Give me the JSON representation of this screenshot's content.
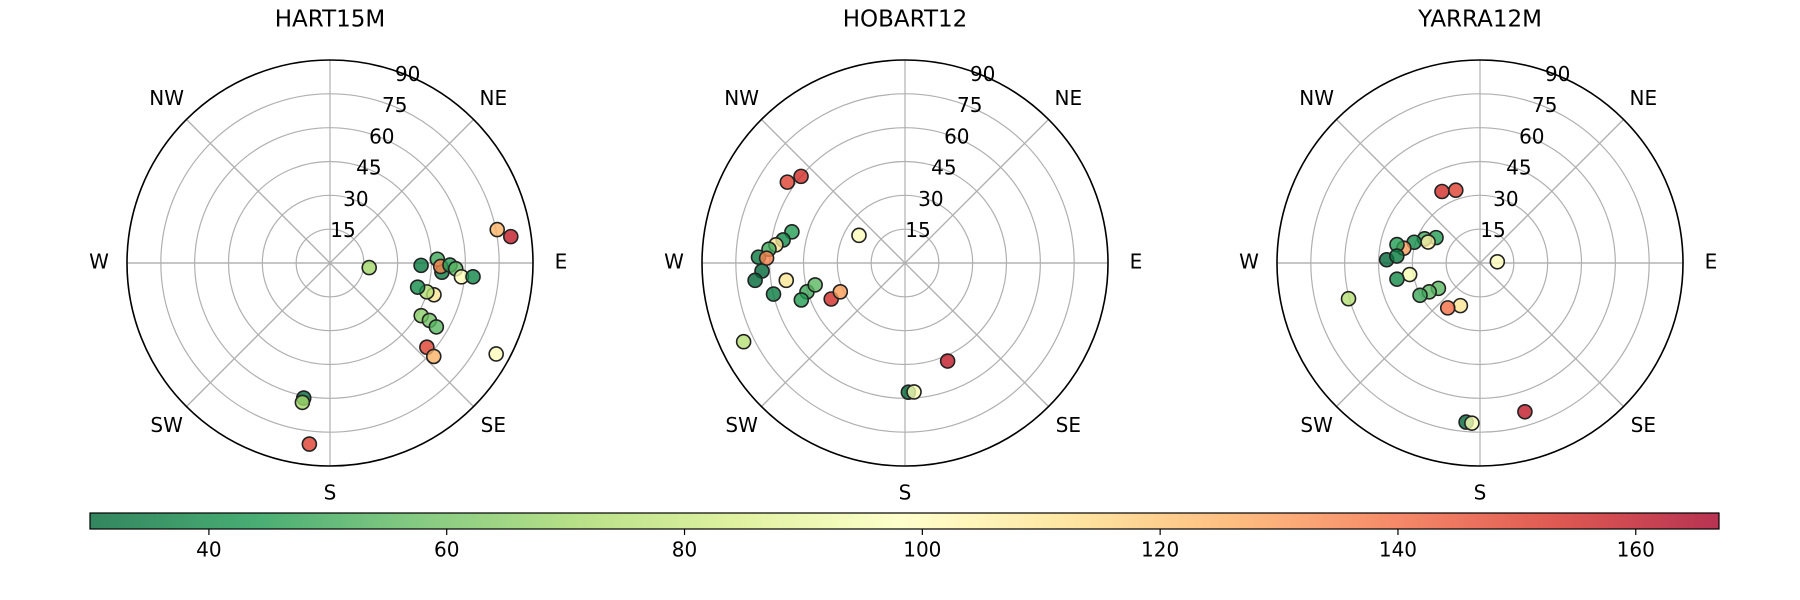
{
  "chart_data": [
    {
      "type": "polar-scatter",
      "title": "HART15M",
      "theta": [
        96.7,
        78.7,
        81.7,
        91.5,
        88,
        94.7,
        91.8,
        91,
        92.6,
        96,
        95.5,
        107,
        106.6,
        105.4,
        120,
        120,
        121,
        131,
        132,
        118.7,
        191,
        191.2,
        186.5
      ],
      "r": [
        17.5,
        75.6,
        81,
        40.4,
        47.6,
        49.8,
        49.1,
        53.2,
        55.8,
        58.6,
        63.7,
        48.2,
        44.8,
        40.3,
        46.7,
        50.9,
        55,
        56.9,
        61.9,
        84,
        61,
        63,
        80.8
      ],
      "c": [
        70,
        125,
        160,
        35,
        50,
        35,
        135,
        45,
        55,
        100,
        38,
        110,
        75,
        40,
        65,
        60,
        55,
        150,
        125,
        100,
        30,
        70,
        150
      ],
      "rlim": [
        0,
        90
      ],
      "rticks": [
        15,
        30,
        45,
        60,
        75,
        90
      ],
      "thetaticks": [
        {
          "value": 45,
          "label": "NE"
        },
        {
          "value": 90,
          "label": "E"
        },
        {
          "value": 135,
          "label": "SE"
        },
        {
          "value": 180,
          "label": "S"
        },
        {
          "value": 225,
          "label": "SW"
        },
        {
          "value": 270,
          "label": "W"
        },
        {
          "value": 315,
          "label": "NW"
        }
      ],
      "grid": true
    },
    {
      "type": "polar-scatter",
      "title": "HOBART12",
      "theta": [
        301,
        304.5,
        309.8,
        285.4,
        280.7,
        278,
        275.8,
        272.3,
        272,
        266.8,
        263.4,
        256.7,
        261.7,
        253.6,
        256.3,
        250.4,
        244,
        246,
        244,
        156.5,
        178.5,
        176
      ],
      "r": [
        23.8,
        63.3,
        60,
        52,
        55,
        57.8,
        60.6,
        65,
        61.4,
        63.5,
        66.9,
        59.9,
        53.2,
        45.3,
        41,
        48.8,
        36.4,
        31.4,
        79.6,
        47.4,
        57.3,
        57.3
      ],
      "c": [
        100,
        150,
        155,
        45,
        40,
        110,
        50,
        35,
        135,
        30,
        30,
        35,
        110,
        50,
        55,
        45,
        155,
        130,
        75,
        160,
        30,
        95
      ],
      "rlim": [
        0,
        90
      ],
      "rticks": [
        15,
        30,
        45,
        60,
        75,
        90
      ],
      "thetaticks": [
        {
          "value": 45,
          "label": "NE"
        },
        {
          "value": 90,
          "label": "E"
        },
        {
          "value": 135,
          "label": "SE"
        },
        {
          "value": 180,
          "label": "S"
        },
        {
          "value": 225,
          "label": "SW"
        },
        {
          "value": 270,
          "label": "W"
        },
        {
          "value": 315,
          "label": "NW"
        }
      ],
      "grid": true
    },
    {
      "type": "polar-scatter",
      "title": "YARRA12M",
      "theta": [
        86,
        332,
        341.6,
        300,
        293.6,
        287.5,
        292,
        281,
        282.5,
        272,
        274.8,
        260.7,
        259,
        238.6,
        240.4,
        241.7,
        204.7,
        215.7,
        254.8,
        163.2,
        185,
        182.9
      ],
      "r": [
        7.7,
        35.9,
        34,
        22.5,
        26.8,
        30.6,
        24.8,
        34.4,
        37.7,
        41.4,
        37,
        31.6,
        37.5,
        21.6,
        25.9,
        30.2,
        20.8,
        24.5,
        60.4,
        68.9,
        70.8,
        71.1
      ],
      "c": [
        100,
        155,
        150,
        45,
        50,
        40,
        105,
        130,
        45,
        30,
        35,
        95,
        40,
        55,
        55,
        50,
        110,
        140,
        75,
        160,
        30,
        95
      ],
      "rlim": [
        0,
        90
      ],
      "rticks": [
        15,
        30,
        45,
        60,
        75,
        90
      ],
      "thetaticks": [
        {
          "value": 45,
          "label": "NE"
        },
        {
          "value": 90,
          "label": "E"
        },
        {
          "value": 135,
          "label": "SE"
        },
        {
          "value": 180,
          "label": "S"
        },
        {
          "value": 225,
          "label": "SW"
        },
        {
          "value": 270,
          "label": "W"
        },
        {
          "value": 315,
          "label": "NW"
        }
      ],
      "grid": true
    },
    {
      "type": "colorbar",
      "xlim": [
        30,
        167
      ],
      "xticks": [
        40,
        60,
        80,
        100,
        120,
        140,
        160
      ],
      "colormap": [
        "#006837",
        "#1a9850",
        "#66bd63",
        "#a6d96a",
        "#d9ef8b",
        "#ffffbf",
        "#fee08b",
        "#fdae61",
        "#f46d43",
        "#d73027",
        "#a50026"
      ]
    }
  ]
}
